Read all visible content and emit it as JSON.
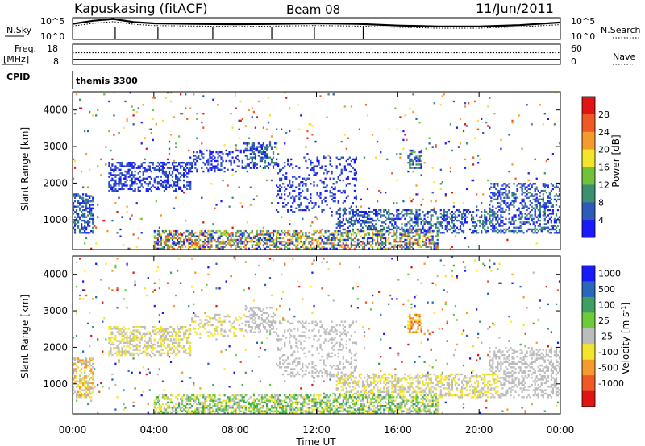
{
  "header": {
    "station": "Kapuskasing (fitACF)",
    "beam": "Beam 08",
    "date": "11/Jun/2011"
  },
  "chart_data": [
    {
      "type": "line",
      "panel": "noise",
      "left_label": "N.Sky",
      "right_label": "N.Search",
      "left_ticks": [
        "10^5",
        "10^0"
      ],
      "right_ticks": [
        "10^5",
        "10^0"
      ],
      "x": [
        0,
        1,
        2,
        3,
        4,
        6,
        8,
        10,
        12,
        14,
        16,
        18,
        20,
        22,
        24
      ],
      "series": [
        {
          "name": "N.Sky",
          "values": [
            3.6,
            4.3,
            4.7,
            4.0,
            3.7,
            3.6,
            3.5,
            3.6,
            3.7,
            3.6,
            3.2,
            3.0,
            3.0,
            3.3,
            3.9
          ]
        },
        {
          "name": "N.Search",
          "values": [
            3.1,
            3.7,
            4.1,
            3.5,
            3.2,
            3.1,
            3.0,
            3.1,
            3.2,
            3.1,
            2.8,
            2.6,
            2.6,
            2.9,
            3.4
          ]
        }
      ],
      "cpid_marker_hours": [
        2.1,
        4.2,
        6.9,
        9.8,
        11.9,
        14.3
      ]
    },
    {
      "type": "line",
      "panel": "frequency",
      "left_label": "Freq.",
      "left_unit": "[MHz]",
      "right_label": "Nave",
      "left_ticks": [
        "18",
        "8"
      ],
      "right_ticks": [
        "60",
        "0"
      ],
      "series": [
        {
          "name": "Freq.",
          "values": [
            10.5
          ]
        },
        {
          "name": "Nave",
          "values": [
            35
          ]
        }
      ],
      "cpid_label": "CPID",
      "program": "themis 3300"
    },
    {
      "type": "heatmap",
      "panel": "power",
      "ylabel": "Slant Range [km]",
      "yticks": [
        1000,
        2000,
        3000,
        4000
      ],
      "ylim": [
        180,
        4500
      ],
      "xlim": [
        0,
        24
      ],
      "colorbar_label": "Power [dB]",
      "colorbar_ticks": [
        "4",
        "8",
        "12",
        "16",
        "20",
        "24",
        "28"
      ],
      "colors": [
        "#1a1aff",
        "#2e5ab8",
        "#3d8f70",
        "#71c23a",
        "#f3e52b",
        "#f59a2c",
        "#ef5a24",
        "#e01414"
      ],
      "echo_bands": [
        {
          "t0": 0.0,
          "t1": 1.0,
          "r0": 600,
          "r1": 1700,
          "density": 0.55,
          "cmin": 0,
          "cmax": 2
        },
        {
          "t0": 1.8,
          "t1": 5.8,
          "r0": 1750,
          "r1": 2600,
          "density": 0.45,
          "cmin": 0,
          "cmax": 1
        },
        {
          "t0": 5.8,
          "t1": 8.5,
          "r0": 2300,
          "r1": 2900,
          "density": 0.28,
          "cmin": 0,
          "cmax": 1
        },
        {
          "t0": 8.5,
          "t1": 10.0,
          "r0": 2400,
          "r1": 3100,
          "density": 0.45,
          "cmin": 0,
          "cmax": 2
        },
        {
          "t0": 10.0,
          "t1": 14.0,
          "r0": 1200,
          "r1": 2700,
          "density": 0.2,
          "cmin": 0,
          "cmax": 1
        },
        {
          "t0": 13.0,
          "t1": 21.0,
          "r0": 600,
          "r1": 1300,
          "density": 0.45,
          "cmin": 0,
          "cmax": 2
        },
        {
          "t0": 16.5,
          "t1": 17.2,
          "r0": 2400,
          "r1": 2900,
          "density": 0.55,
          "cmin": 0,
          "cmax": 3
        },
        {
          "t0": 20.5,
          "t1": 24.0,
          "r0": 600,
          "r1": 2000,
          "density": 0.35,
          "cmin": 0,
          "cmax": 2
        },
        {
          "t0": 4.0,
          "t1": 18.0,
          "r0": 200,
          "r1": 700,
          "density": 0.55,
          "cmin": 0,
          "cmax": 6
        }
      ],
      "background_density": 0.018
    },
    {
      "type": "heatmap",
      "panel": "velocity",
      "ylabel": "Slant Range [km]",
      "yticks": [
        1000,
        2000,
        3000,
        4000
      ],
      "ylim": [
        180,
        4500
      ],
      "xlim": [
        0,
        24
      ],
      "xlabel": "Time UT",
      "xticks": [
        "00:00",
        "04:00",
        "08:00",
        "12:00",
        "16:00",
        "20:00",
        "00:00"
      ],
      "colorbar_label": "Velocity [m s^-1]",
      "colorbar_ticks": [
        "1000",
        "500",
        "100",
        "25",
        "-25",
        "-100",
        "-500",
        "-1000"
      ],
      "colors": [
        "#1a1aff",
        "#2a66bb",
        "#3f9f63",
        "#6bcb3a",
        "#bcbcbc",
        "#f3e52b",
        "#f59a2c",
        "#ef5a24",
        "#e01414"
      ],
      "echo_bands": [
        {
          "t0": 0.0,
          "t1": 1.0,
          "r0": 600,
          "r1": 1700,
          "density": 0.55,
          "cmin": 4,
          "cmax": 6
        },
        {
          "t0": 1.8,
          "t1": 5.8,
          "r0": 1750,
          "r1": 2600,
          "density": 0.45,
          "cmin": 4,
          "cmax": 5
        },
        {
          "t0": 5.8,
          "t1": 8.5,
          "r0": 2300,
          "r1": 2900,
          "density": 0.28,
          "cmin": 4,
          "cmax": 5
        },
        {
          "t0": 8.5,
          "t1": 10.0,
          "r0": 2400,
          "r1": 3100,
          "density": 0.45,
          "cmin": 4,
          "cmax": 4
        },
        {
          "t0": 10.0,
          "t1": 14.0,
          "r0": 1200,
          "r1": 2700,
          "density": 0.2,
          "cmin": 4,
          "cmax": 4
        },
        {
          "t0": 13.0,
          "t1": 21.0,
          "r0": 600,
          "r1": 1300,
          "density": 0.45,
          "cmin": 4,
          "cmax": 5
        },
        {
          "t0": 16.5,
          "t1": 17.2,
          "r0": 2400,
          "r1": 2900,
          "density": 0.55,
          "cmin": 5,
          "cmax": 7
        },
        {
          "t0": 20.5,
          "t1": 24.0,
          "r0": 600,
          "r1": 2000,
          "density": 0.35,
          "cmin": 4,
          "cmax": 4
        },
        {
          "t0": 4.0,
          "t1": 18.0,
          "r0": 200,
          "r1": 700,
          "density": 0.55,
          "cmin": 2,
          "cmax": 5
        }
      ],
      "background_density": 0.018
    }
  ]
}
